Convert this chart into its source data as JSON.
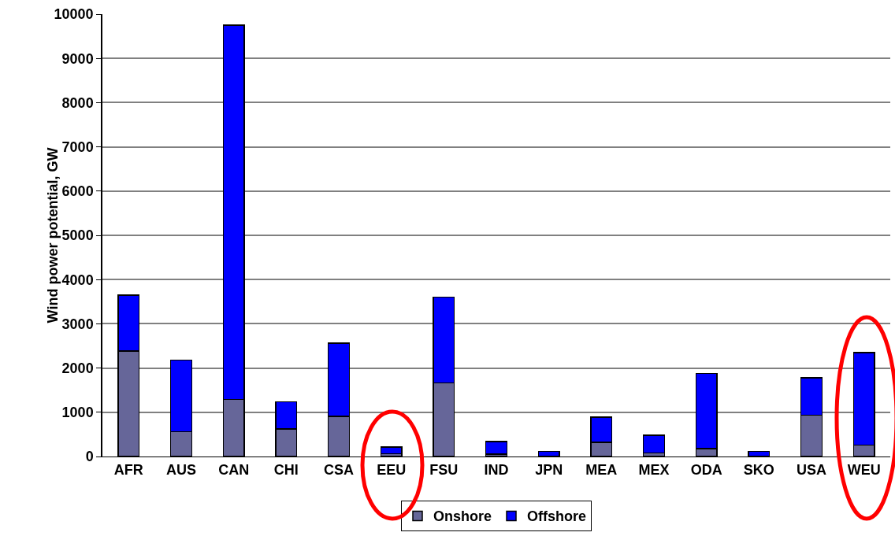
{
  "chart_data": {
    "type": "bar",
    "stacked": true,
    "ylabel": "Wind power potential, GW",
    "categories": [
      "AFR",
      "AUS",
      "CAN",
      "CHI",
      "CSA",
      "EEU",
      "FSU",
      "IND",
      "JPN",
      "MEA",
      "MEX",
      "ODA",
      "SKO",
      "USA",
      "WEU"
    ],
    "series": [
      {
        "name": "Onshore",
        "color": "#666699",
        "values": [
          2380,
          560,
          1290,
          620,
          910,
          60,
          1660,
          50,
          10,
          320,
          80,
          180,
          10,
          930,
          260
        ]
      },
      {
        "name": "Offshore",
        "color": "#0000ff",
        "values": [
          1270,
          1620,
          8460,
          620,
          1650,
          150,
          1940,
          290,
          110,
          570,
          400,
          1700,
          110,
          850,
          2090
        ]
      }
    ],
    "ylim": [
      0,
      10000
    ],
    "yticks": [
      0,
      1000,
      2000,
      3000,
      4000,
      5000,
      6000,
      7000,
      8000,
      9000,
      10000
    ],
    "grid": "y",
    "legend": "bottom"
  }
}
